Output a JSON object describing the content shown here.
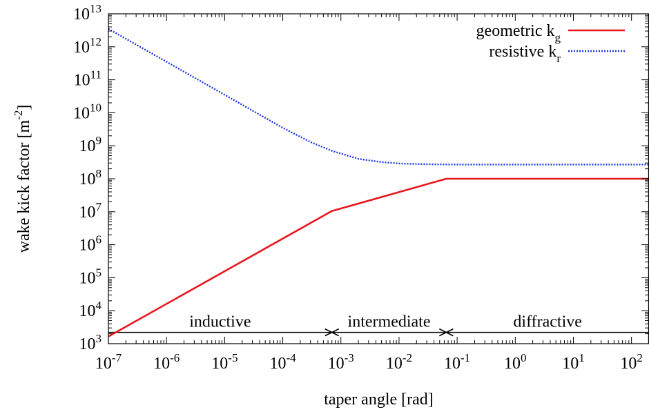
{
  "chart_data": {
    "type": "line",
    "xlabel": "taper angle [rad]",
    "ylabel": {
      "text": "wake kick factor [m",
      "sup": "-2",
      "suffix": "]"
    },
    "x_scale": "log",
    "y_scale": "log",
    "xlim": [
      1e-07,
      200
    ],
    "ylim": [
      1000,
      10000000000000.0
    ],
    "x_ticks": [
      {
        "value": 1e-07,
        "base": "10",
        "exp": "-7"
      },
      {
        "value": 1e-06,
        "base": "10",
        "exp": "-6"
      },
      {
        "value": 1e-05,
        "base": "10",
        "exp": "-5"
      },
      {
        "value": 0.0001,
        "base": "10",
        "exp": "-4"
      },
      {
        "value": 0.001,
        "base": "10",
        "exp": "-3"
      },
      {
        "value": 0.01,
        "base": "10",
        "exp": "-2"
      },
      {
        "value": 0.1,
        "base": "10",
        "exp": "-1"
      },
      {
        "value": 1,
        "base": "10",
        "exp": "0"
      },
      {
        "value": 10,
        "base": "10",
        "exp": "1"
      },
      {
        "value": 100,
        "base": "10",
        "exp": "2"
      }
    ],
    "y_ticks": [
      {
        "value": 1000.0,
        "base": "10",
        "exp": "3"
      },
      {
        "value": 10000.0,
        "base": "10",
        "exp": "4"
      },
      {
        "value": 100000.0,
        "base": "10",
        "exp": "5"
      },
      {
        "value": 1000000.0,
        "base": "10",
        "exp": "6"
      },
      {
        "value": 10000000.0,
        "base": "10",
        "exp": "7"
      },
      {
        "value": 100000000.0,
        "base": "10",
        "exp": "8"
      },
      {
        "value": 1000000000.0,
        "base": "10",
        "exp": "9"
      },
      {
        "value": 10000000000.0,
        "base": "10",
        "exp": "10"
      },
      {
        "value": 100000000000.0,
        "base": "10",
        "exp": "11"
      },
      {
        "value": 1000000000000.0,
        "base": "10",
        "exp": "12"
      },
      {
        "value": 10000000000000.0,
        "base": "10",
        "exp": "13"
      }
    ],
    "grid": false,
    "legend_position": "top-right",
    "series": [
      {
        "name": "geometric k",
        "subscript": "g",
        "color": "#e8141c",
        "style": "solid",
        "x": [
          1e-07,
          0.0007,
          0.065,
          200
        ],
        "y": [
          1650,
          10500000.0,
          100000000.0,
          100000000.0
        ]
      },
      {
        "name": "resistive k",
        "subscript": "r",
        "color": "#1a33e6",
        "style": "dotted",
        "x": [
          1e-07,
          1e-06,
          1e-05,
          0.0001,
          0.0003,
          0.0007,
          0.002,
          0.005,
          0.01,
          0.03,
          0.1,
          1,
          10,
          200
        ],
        "y": [
          3500000000000.0,
          350000000000.0,
          35000000000.0,
          3500000000.0,
          1300000000.0,
          700000000.0,
          400000000.0,
          320000000.0,
          290000000.0,
          275000000.0,
          270000000.0,
          270000000.0,
          270000000.0,
          270000000.0
        ]
      }
    ],
    "regions": [
      {
        "label": "inductive",
        "x_start": 1e-07,
        "x_end": 0.0007
      },
      {
        "label": "intermediate",
        "x_start": 0.0007,
        "x_end": 0.065
      },
      {
        "label": "diffractive",
        "x_start": 0.065,
        "x_end": 200
      }
    ],
    "regions_y": 2200,
    "colors": {
      "axis": "#000000",
      "region_line": "#000000"
    }
  }
}
